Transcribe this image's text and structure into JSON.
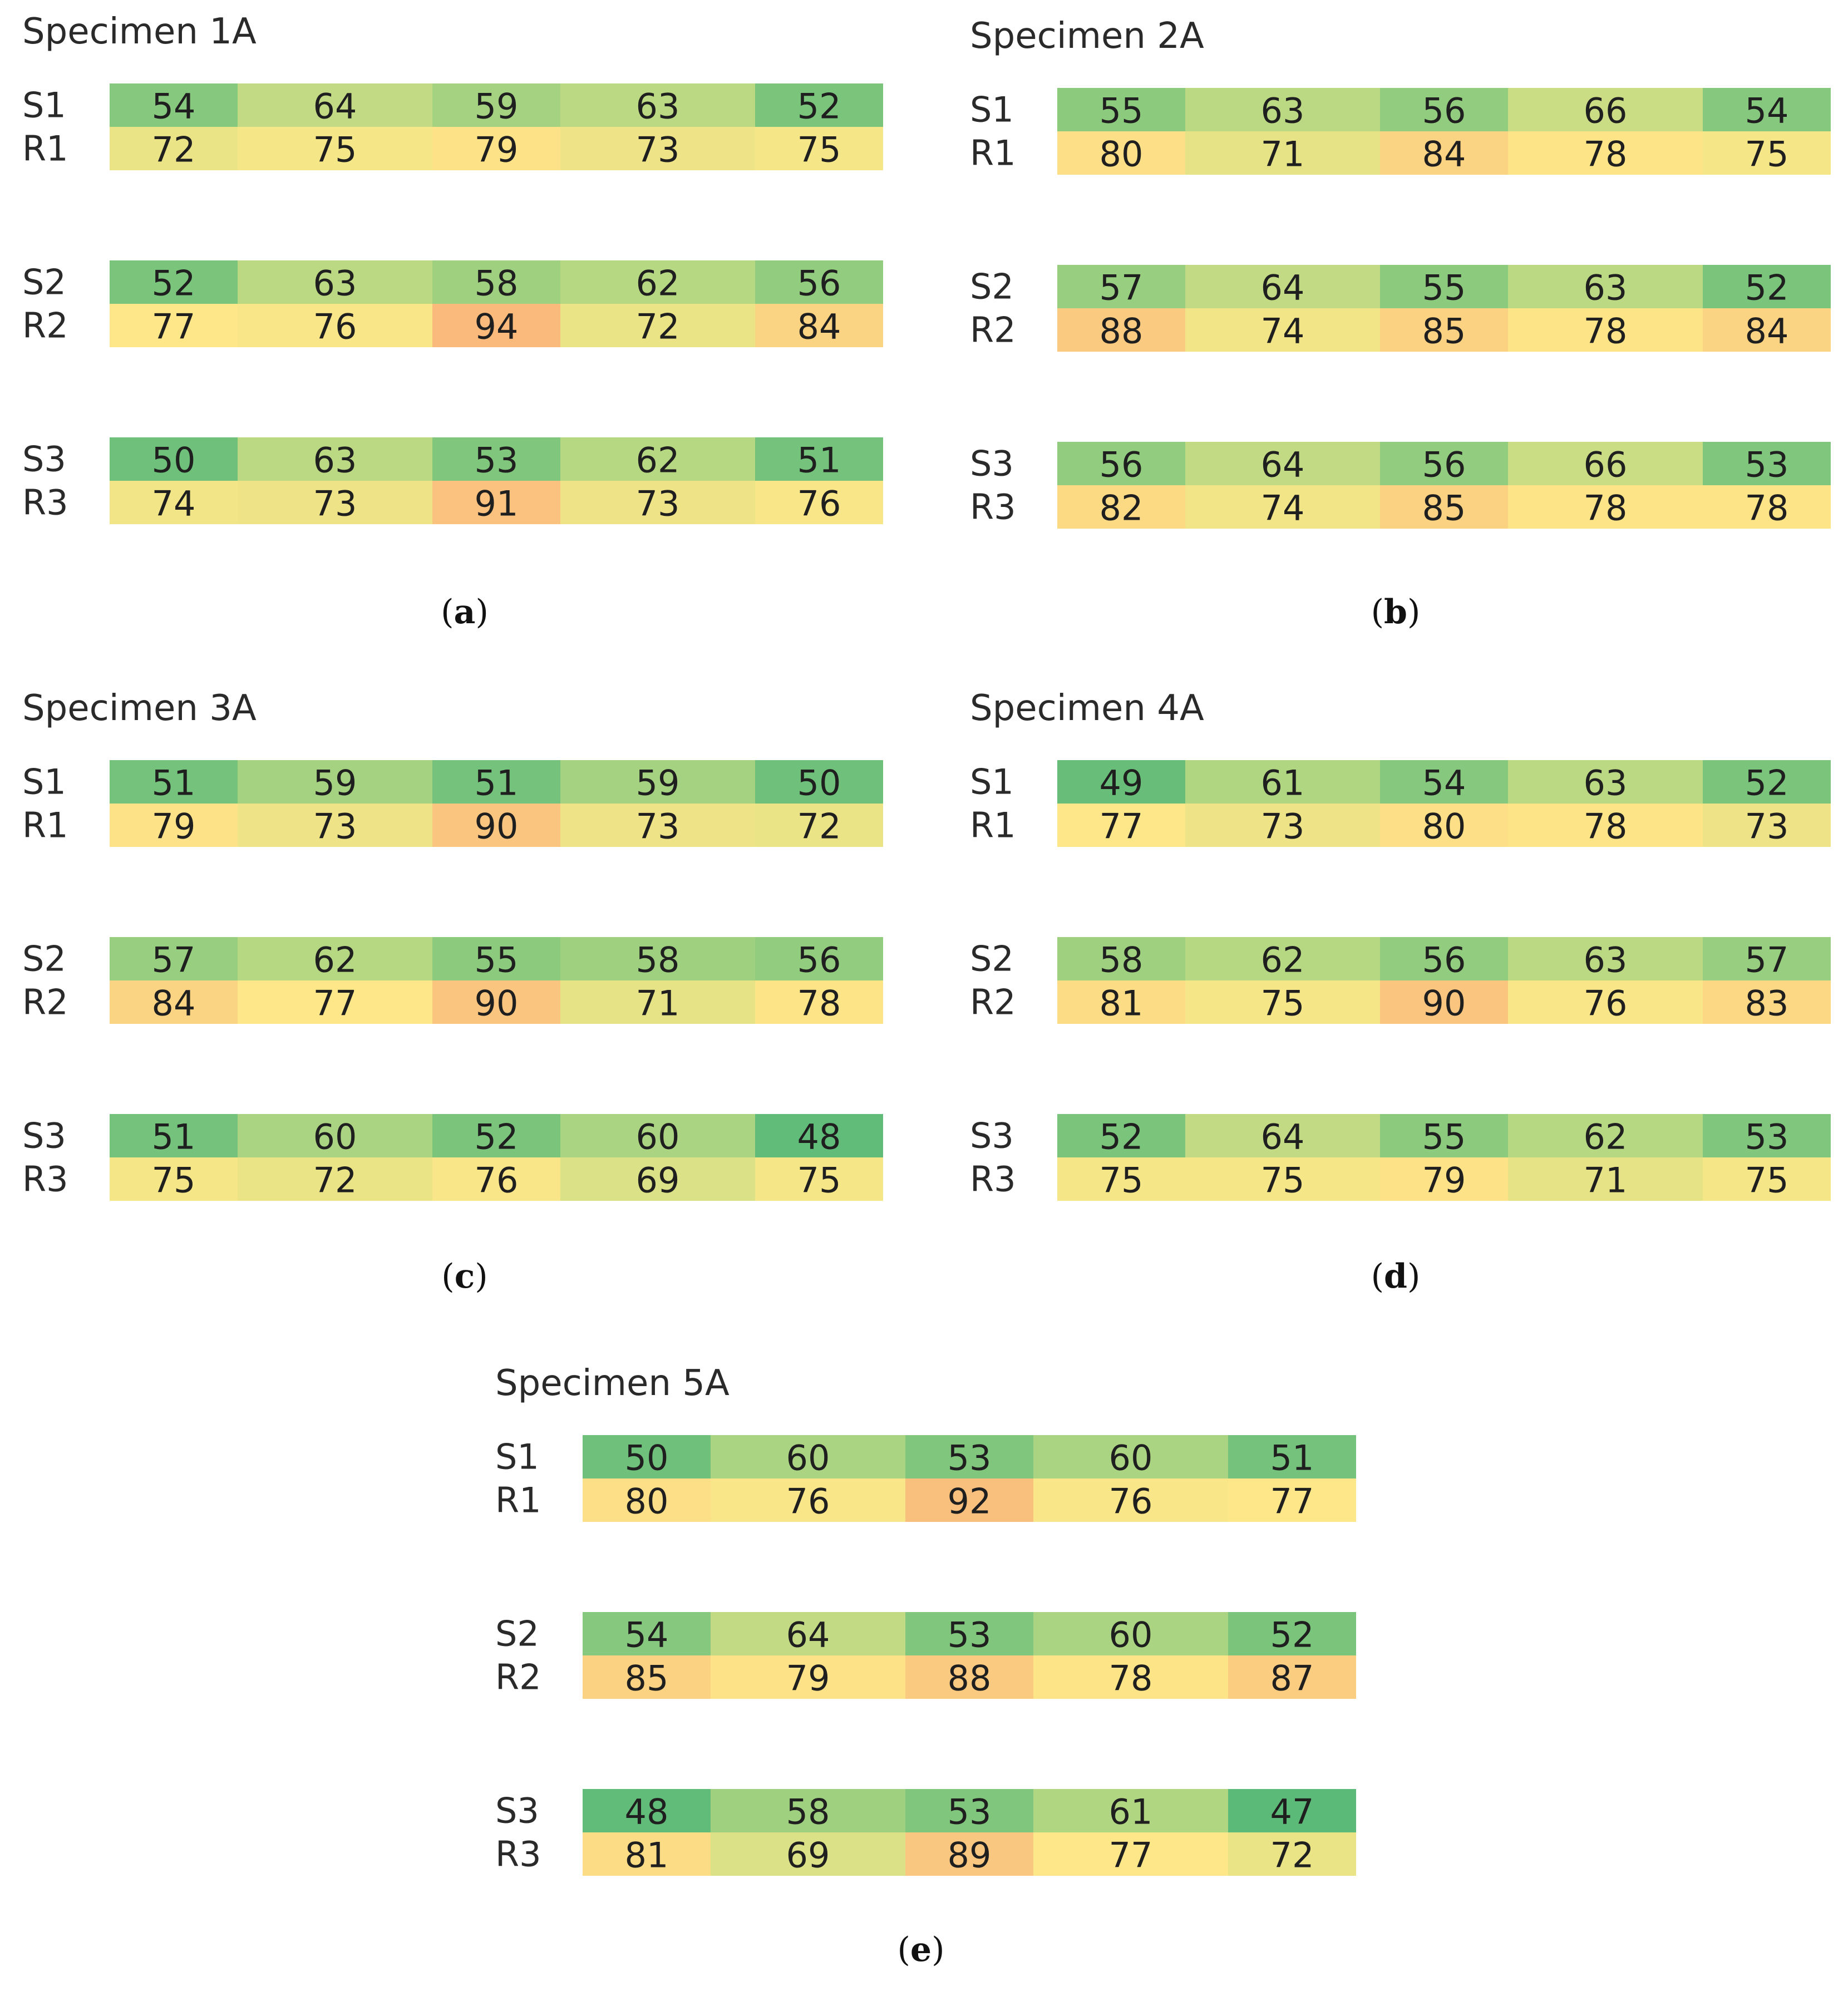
{
  "chart_data": [
    {
      "type": "heatmap",
      "title": "Specimen 1A",
      "caption_letter": "a",
      "row_labels": [
        "S1",
        "R1",
        "S2",
        "R2",
        "S3",
        "R3"
      ],
      "values": [
        [
          54,
          64,
          59,
          63,
          52
        ],
        [
          72,
          75,
          79,
          73,
          75
        ],
        [
          52,
          63,
          58,
          62,
          56
        ],
        [
          77,
          76,
          94,
          72,
          84
        ],
        [
          50,
          63,
          53,
          62,
          51
        ],
        [
          74,
          73,
          91,
          73,
          76
        ]
      ]
    },
    {
      "type": "heatmap",
      "title": "Specimen 2A",
      "caption_letter": "b",
      "row_labels": [
        "S1",
        "R1",
        "S2",
        "R2",
        "S3",
        "R3"
      ],
      "values": [
        [
          55,
          63,
          56,
          66,
          54
        ],
        [
          80,
          71,
          84,
          78,
          75
        ],
        [
          57,
          64,
          55,
          63,
          52
        ],
        [
          88,
          74,
          85,
          78,
          84
        ],
        [
          56,
          64,
          56,
          66,
          53
        ],
        [
          82,
          74,
          85,
          78,
          78
        ]
      ]
    },
    {
      "type": "heatmap",
      "title": "Specimen 3A",
      "caption_letter": "c",
      "row_labels": [
        "S1",
        "R1",
        "S2",
        "R2",
        "S3",
        "R3"
      ],
      "values": [
        [
          51,
          59,
          51,
          59,
          50
        ],
        [
          79,
          73,
          90,
          73,
          72
        ],
        [
          57,
          62,
          55,
          58,
          56
        ],
        [
          84,
          77,
          90,
          71,
          78
        ],
        [
          51,
          60,
          52,
          60,
          48
        ],
        [
          75,
          72,
          76,
          69,
          75
        ]
      ]
    },
    {
      "type": "heatmap",
      "title": "Specimen 4A",
      "caption_letter": "d",
      "row_labels": [
        "S1",
        "R1",
        "S2",
        "R2",
        "S3",
        "R3"
      ],
      "values": [
        [
          49,
          61,
          54,
          63,
          52
        ],
        [
          77,
          73,
          80,
          78,
          73
        ],
        [
          58,
          62,
          56,
          63,
          57
        ],
        [
          81,
          75,
          90,
          76,
          83
        ],
        [
          52,
          64,
          55,
          62,
          53
        ],
        [
          75,
          75,
          79,
          71,
          75
        ]
      ]
    },
    {
      "type": "heatmap",
      "title": "Specimen 5A",
      "caption_letter": "e",
      "row_labels": [
        "S1",
        "R1",
        "S2",
        "R2",
        "S3",
        "R3"
      ],
      "values": [
        [
          50,
          60,
          53,
          60,
          51
        ],
        [
          80,
          76,
          92,
          76,
          77
        ],
        [
          54,
          64,
          53,
          60,
          52
        ],
        [
          85,
          79,
          88,
          78,
          87
        ],
        [
          48,
          58,
          53,
          61,
          47
        ],
        [
          81,
          69,
          89,
          77,
          72
        ]
      ]
    }
  ],
  "colors": {
    "low": "#5cba78",
    "mid_green": "#b6d882",
    "mid": "#e6e387",
    "yellow": "#fde788",
    "high": "#f9ba7c",
    "text": "#1f1f1f",
    "label": "#2a2a2a"
  }
}
